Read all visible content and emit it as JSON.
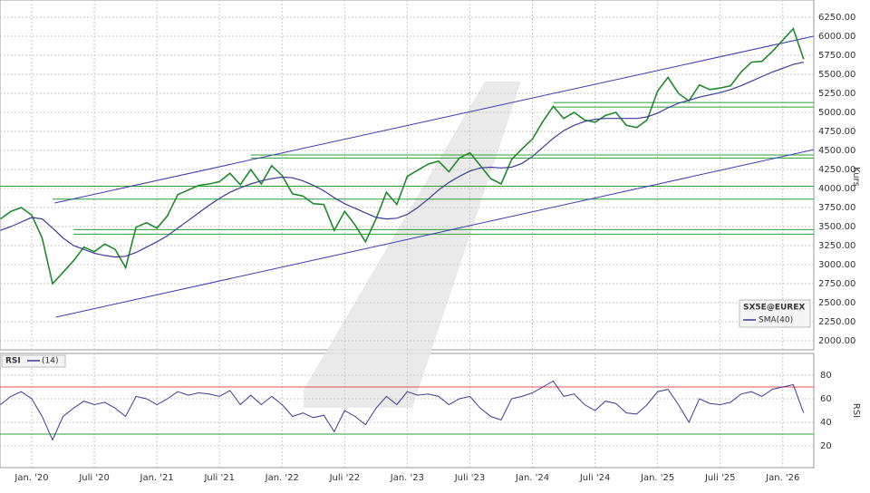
{
  "chart_data": {
    "type": "line",
    "categories": [
      null,
      null,
      null,
      "Jan. '20",
      null,
      null,
      null,
      null,
      null,
      "Juli '20",
      null,
      null,
      null,
      null,
      null,
      "Jan. '21",
      null,
      null,
      null,
      null,
      null,
      "Juli '21",
      null,
      null,
      null,
      null,
      null,
      "Jan. '22",
      null,
      null,
      null,
      null,
      null,
      "Juli '22",
      null,
      null,
      null,
      null,
      null,
      "Jan. '23",
      null,
      null,
      null,
      null,
      null,
      "Juli '23",
      null,
      null,
      null,
      null,
      null,
      "Jan. '24",
      null,
      null,
      null,
      null,
      null,
      "Juli '24",
      null,
      null,
      null,
      null,
      null,
      "Jan. '25",
      null,
      null,
      null,
      null,
      null,
      "Juli '25",
      null,
      null,
      null,
      null,
      null,
      "Jan. '26",
      null,
      null
    ],
    "ylabel": "Kurs",
    "ylim": [
      2000,
      6250
    ],
    "yticks": [
      {
        "value": 2000,
        "label": "2000.00"
      },
      {
        "value": 2250,
        "label": "2250.00"
      },
      {
        "value": 2500,
        "label": "2500.00"
      },
      {
        "value": 2750,
        "label": "2750.00"
      },
      {
        "value": 3000,
        "label": "3000.00"
      },
      {
        "value": 3250,
        "label": "3250.00"
      },
      {
        "value": 3500,
        "label": "3500.00"
      },
      {
        "value": 3750,
        "label": "3750.00"
      },
      {
        "value": 4000,
        "label": "4000.00"
      },
      {
        "value": 4250,
        "label": "4250.00"
      },
      {
        "value": 4500,
        "label": "4500.00"
      },
      {
        "value": 4750,
        "label": "4750.00"
      },
      {
        "value": 5000,
        "label": "5000.00"
      },
      {
        "value": 5250,
        "label": "5250.00"
      },
      {
        "value": 5500,
        "label": "5500.00"
      },
      {
        "value": 5750,
        "label": "5750.00"
      },
      {
        "value": 6000,
        "label": "6000.00"
      },
      {
        "value": 6250,
        "label": "6250.00"
      }
    ],
    "grid": true,
    "series": [
      {
        "name": "SX5E@EUREX",
        "color": "#1f8a2a",
        "values": [
          3600,
          3700,
          3750,
          3650,
          3350,
          2750,
          2900,
          3050,
          3230,
          3170,
          3270,
          3200,
          2960,
          3490,
          3550,
          3480,
          3640,
          3920,
          3980,
          4040,
          4060,
          4090,
          4200,
          4050,
          4250,
          4060,
          4300,
          4170,
          3930,
          3900,
          3800,
          3790,
          3450,
          3700,
          3520,
          3300,
          3600,
          3950,
          3790,
          4160,
          4240,
          4320,
          4360,
          4220,
          4400,
          4470,
          4300,
          4130,
          4060,
          4380,
          4520,
          4650,
          4880,
          5080,
          4920,
          5000,
          4900,
          4870,
          4960,
          5000,
          4830,
          4800,
          4900,
          5280,
          5460,
          5250,
          5150,
          5360,
          5300,
          5320,
          5350,
          5530,
          5660,
          5670,
          5800,
          5950,
          6100,
          5700
        ]
      },
      {
        "name": "SMA(40)",
        "color": "#3b3b96",
        "values": [
          3450,
          3500,
          3560,
          3620,
          3600,
          3480,
          3350,
          3250,
          3200,
          3150,
          3120,
          3100,
          3110,
          3160,
          3230,
          3300,
          3380,
          3480,
          3580,
          3680,
          3780,
          3870,
          3950,
          4010,
          4060,
          4100,
          4130,
          4150,
          4140,
          4100,
          4040,
          3970,
          3880,
          3800,
          3740,
          3680,
          3620,
          3600,
          3610,
          3660,
          3750,
          3860,
          3980,
          4080,
          4160,
          4230,
          4270,
          4280,
          4270,
          4280,
          4330,
          4420,
          4540,
          4660,
          4760,
          4830,
          4880,
          4910,
          4920,
          4920,
          4920,
          4920,
          4940,
          4990,
          5060,
          5120,
          5160,
          5200,
          5230,
          5260,
          5300,
          5350,
          5410,
          5470,
          5530,
          5580,
          5630,
          5660
        ]
      }
    ],
    "trendlines": [
      {
        "color": "#3b3bb0",
        "points": [
          [
            5.2,
            3810
          ],
          [
            77.95,
            6000
          ]
        ]
      },
      {
        "color": "#3b3bb0",
        "points": [
          [
            5.3,
            2310
          ],
          [
            77.95,
            4510
          ]
        ]
      }
    ],
    "levels": [
      {
        "color": "#2e9e3a",
        "value": 5130,
        "from": 53
      },
      {
        "color": "#2e9e3a",
        "value": 5070,
        "from": 53
      },
      {
        "color": "#2e9e3a",
        "value": 4440,
        "from": 24
      },
      {
        "color": "#2e9e3a",
        "value": 4400,
        "from": 24
      },
      {
        "color": "#2e9e3a",
        "value": 4030,
        "from": 0
      },
      {
        "color": "#2e9e3a",
        "value": 3860,
        "from": 5
      },
      {
        "color": "#2e9e3a",
        "value": 3460,
        "from": 7
      },
      {
        "color": "#2e9e3a",
        "value": 3400,
        "from": 7
      }
    ],
    "rsi": {
      "title": "RSI",
      "name": "(14)",
      "ylabel": "RSI",
      "color": "#3b3b96",
      "ylim": [
        10,
        90
      ],
      "yticks": [
        20,
        40,
        60,
        80
      ],
      "levels": [
        {
          "value": 70,
          "color": "#e05050"
        },
        {
          "value": 30,
          "color": "#2e9e3a"
        }
      ],
      "values": [
        55,
        62,
        66,
        60,
        45,
        25,
        45,
        52,
        58,
        55,
        57,
        52,
        45,
        62,
        60,
        55,
        60,
        66,
        63,
        65,
        64,
        62,
        67,
        55,
        63,
        55,
        62,
        55,
        45,
        48,
        44,
        46,
        32,
        50,
        45,
        38,
        52,
        62,
        55,
        66,
        63,
        64,
        62,
        55,
        60,
        62,
        52,
        45,
        42,
        60,
        62,
        65,
        70,
        75,
        62,
        64,
        55,
        50,
        58,
        56,
        48,
        47,
        55,
        66,
        68,
        55,
        40,
        60,
        56,
        55,
        57,
        64,
        66,
        62,
        68,
        70,
        72,
        48
      ]
    }
  }
}
